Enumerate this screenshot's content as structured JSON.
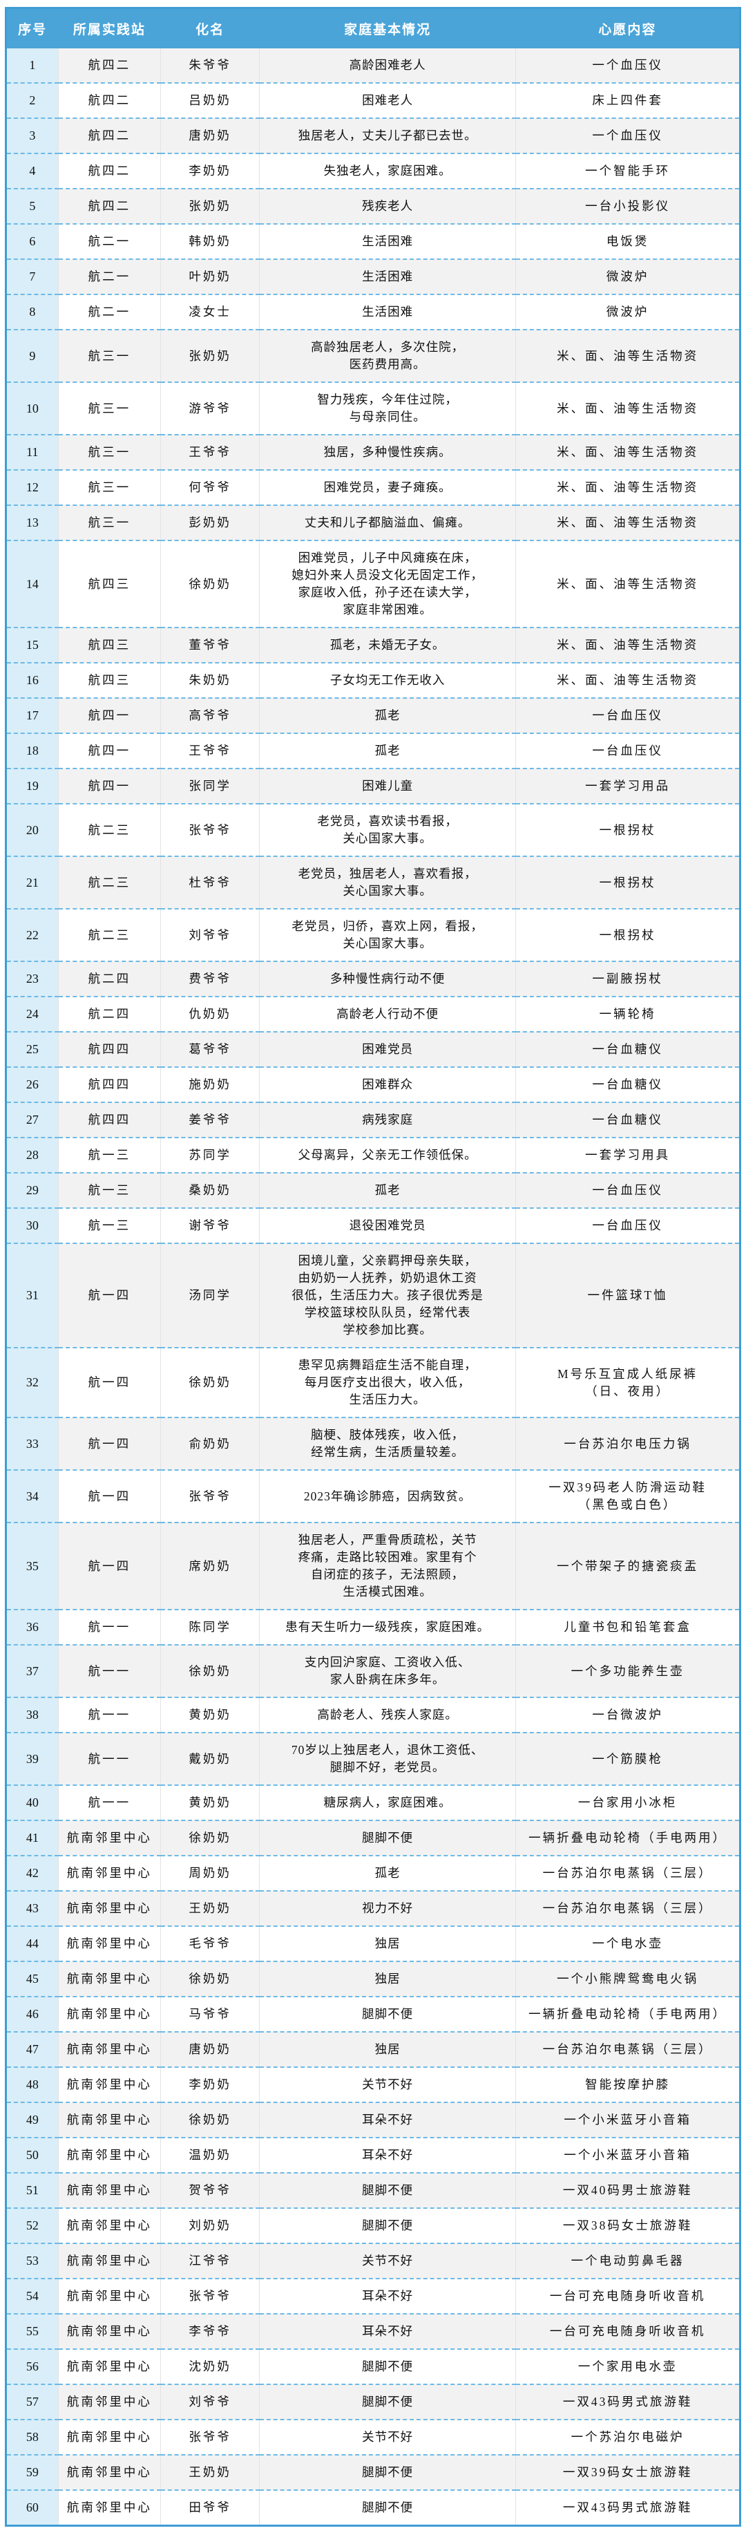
{
  "colors": {
    "header_bg": "#4aa4d8",
    "header_text": "#ffffff",
    "outer_border": "#3e9dd4",
    "index_column_bg": "#d9eef8",
    "alt_row_bg": "#f2f2f2",
    "row_divider_dashed": "#6db9e6",
    "body_text": "#111111"
  },
  "table": {
    "columns": [
      {
        "key": "index",
        "label": "序号"
      },
      {
        "key": "station",
        "label": "所属实践站"
      },
      {
        "key": "name",
        "label": "化名"
      },
      {
        "key": "situation",
        "label": "家庭基本情况"
      },
      {
        "key": "wish",
        "label": "心愿内容"
      }
    ],
    "rows": [
      {
        "index": "1",
        "station": "航四二",
        "name": "朱爷爷",
        "situation": "高龄困难老人",
        "wish": "一个血压仪"
      },
      {
        "index": "2",
        "station": "航四二",
        "name": "吕奶奶",
        "situation": "困难老人",
        "wish": "床上四件套"
      },
      {
        "index": "3",
        "station": "航四二",
        "name": "唐奶奶",
        "situation": "独居老人，丈夫儿子都已去世。",
        "wish": "一个血压仪"
      },
      {
        "index": "4",
        "station": "航四二",
        "name": "李奶奶",
        "situation": "失独老人，家庭困难。",
        "wish": "一个智能手环"
      },
      {
        "index": "5",
        "station": "航四二",
        "name": "张奶奶",
        "situation": "残疾老人",
        "wish": "一台小投影仪"
      },
      {
        "index": "6",
        "station": "航二一",
        "name": "韩奶奶",
        "situation": "生活困难",
        "wish": "电饭煲"
      },
      {
        "index": "7",
        "station": "航二一",
        "name": "叶奶奶",
        "situation": "生活困难",
        "wish": "微波炉"
      },
      {
        "index": "8",
        "station": "航二一",
        "name": "凌女士",
        "situation": "生活困难",
        "wish": "微波炉"
      },
      {
        "index": "9",
        "station": "航三一",
        "name": "张奶奶",
        "situation": "高龄独居老人，多次住院，\n医药费用高。",
        "wish": "米、面、油等生活物资"
      },
      {
        "index": "10",
        "station": "航三一",
        "name": "游爷爷",
        "situation": "智力残疾，今年住过院，\n与母亲同住。",
        "wish": "米、面、油等生活物资"
      },
      {
        "index": "11",
        "station": "航三一",
        "name": "王爷爷",
        "situation": "独居，多种慢性疾病。",
        "wish": "米、面、油等生活物资"
      },
      {
        "index": "12",
        "station": "航三一",
        "name": "何爷爷",
        "situation": "困难党员，妻子瘫痪。",
        "wish": "米、面、油等生活物资"
      },
      {
        "index": "13",
        "station": "航三一",
        "name": "彭奶奶",
        "situation": "丈夫和儿子都脑溢血、偏瘫。",
        "wish": "米、面、油等生活物资"
      },
      {
        "index": "14",
        "station": "航四三",
        "name": "徐奶奶",
        "situation": "困难党员，儿子中风瘫痪在床，\n媳妇外来人员没文化无固定工作，\n家庭收入低，孙子还在读大学，\n家庭非常困难。",
        "wish": "米、面、油等生活物资"
      },
      {
        "index": "15",
        "station": "航四三",
        "name": "董爷爷",
        "situation": "孤老，未婚无子女。",
        "wish": "米、面、油等生活物资"
      },
      {
        "index": "16",
        "station": "航四三",
        "name": "朱奶奶",
        "situation": "子女均无工作无收入",
        "wish": "米、面、油等生活物资"
      },
      {
        "index": "17",
        "station": "航四一",
        "name": "高爷爷",
        "situation": "孤老",
        "wish": "一台血压仪"
      },
      {
        "index": "18",
        "station": "航四一",
        "name": "王爷爷",
        "situation": "孤老",
        "wish": "一台血压仪"
      },
      {
        "index": "19",
        "station": "航四一",
        "name": "张同学",
        "situation": "困难儿童",
        "wish": "一套学习用品"
      },
      {
        "index": "20",
        "station": "航二三",
        "name": "张爷爷",
        "situation": "老党员，喜欢读书看报，\n关心国家大事。",
        "wish": "一根拐杖"
      },
      {
        "index": "21",
        "station": "航二三",
        "name": "杜爷爷",
        "situation": "老党员，独居老人，喜欢看报，\n关心国家大事。",
        "wish": "一根拐杖"
      },
      {
        "index": "22",
        "station": "航二三",
        "name": "刘爷爷",
        "situation": "老党员，归侨，喜欢上网，看报，\n关心国家大事。",
        "wish": "一根拐杖"
      },
      {
        "index": "23",
        "station": "航二四",
        "name": "费爷爷",
        "situation": "多种慢性病行动不便",
        "wish": "一副腋拐杖"
      },
      {
        "index": "24",
        "station": "航二四",
        "name": "仇奶奶",
        "situation": "高龄老人行动不便",
        "wish": "一辆轮椅"
      },
      {
        "index": "25",
        "station": "航四四",
        "name": "葛爷爷",
        "situation": "困难党员",
        "wish": "一台血糖仪"
      },
      {
        "index": "26",
        "station": "航四四",
        "name": "施奶奶",
        "situation": "困难群众",
        "wish": "一台血糖仪"
      },
      {
        "index": "27",
        "station": "航四四",
        "name": "姜爷爷",
        "situation": "病残家庭",
        "wish": "一台血糖仪"
      },
      {
        "index": "28",
        "station": "航一三",
        "name": "苏同学",
        "situation": "父母离异，父亲无工作领低保。",
        "wish": "一套学习用具"
      },
      {
        "index": "29",
        "station": "航一三",
        "name": "桑奶奶",
        "situation": "孤老",
        "wish": "一台血压仪"
      },
      {
        "index": "30",
        "station": "航一三",
        "name": "谢爷爷",
        "situation": "退役困难党员",
        "wish": "一台血压仪"
      },
      {
        "index": "31",
        "station": "航一四",
        "name": "汤同学",
        "situation": "困境儿童，父亲羁押母亲失联，\n由奶奶一人抚养，奶奶退休工资\n很低，生活压力大。孩子很优秀是\n学校篮球校队队员，经常代表\n学校参加比赛。",
        "wish": "一件篮球T恤"
      },
      {
        "index": "32",
        "station": "航一四",
        "name": "徐奶奶",
        "situation": "患罕见病舞蹈症生活不能自理，\n每月医疗支出很大，收入低，\n生活压力大。",
        "wish": "M号乐互宜成人纸尿裤\n（日、夜用）"
      },
      {
        "index": "33",
        "station": "航一四",
        "name": "俞奶奶",
        "situation": "脑梗、肢体残疾，收入低，\n经常生病，生活质量较差。",
        "wish": "一台苏泊尔电压力锅"
      },
      {
        "index": "34",
        "station": "航一四",
        "name": "张爷爷",
        "situation": "2023年确诊肺癌，因病致贫。",
        "wish": "一双39码老人防滑运动鞋\n（黑色或白色）"
      },
      {
        "index": "35",
        "station": "航一四",
        "name": "席奶奶",
        "situation": "独居老人，严重骨质疏松，关节\n疼痛，走路比较困难。家里有个\n自闭症的孩子，无法照顾，\n生活模式困难。",
        "wish": "一个带架子的搪瓷痰盂"
      },
      {
        "index": "36",
        "station": "航一一",
        "name": "陈同学",
        "situation": "患有天生听力一级残疾，家庭困难。",
        "wish": "儿童书包和铅笔套盒"
      },
      {
        "index": "37",
        "station": "航一一",
        "name": "徐奶奶",
        "situation": "支内回沪家庭、工资收入低、\n家人卧病在床多年。",
        "wish": "一个多功能养生壶"
      },
      {
        "index": "38",
        "station": "航一一",
        "name": "黄奶奶",
        "situation": "高龄老人、残疾人家庭。",
        "wish": "一台微波炉"
      },
      {
        "index": "39",
        "station": "航一一",
        "name": "戴奶奶",
        "situation": "70岁以上独居老人，退休工资低、\n腿脚不好，老党员。",
        "wish": "一个筋膜枪"
      },
      {
        "index": "40",
        "station": "航一一",
        "name": "黄奶奶",
        "situation": "糖尿病人，家庭困难。",
        "wish": "一台家用小冰柜"
      },
      {
        "index": "41",
        "station": "航南邻里中心",
        "name": "徐奶奶",
        "situation": "腿脚不便",
        "wish": "一辆折叠电动轮椅（手电两用）"
      },
      {
        "index": "42",
        "station": "航南邻里中心",
        "name": "周奶奶",
        "situation": "孤老",
        "wish": "一台苏泊尔电蒸锅（三层）"
      },
      {
        "index": "43",
        "station": "航南邻里中心",
        "name": "王奶奶",
        "situation": "视力不好",
        "wish": "一台苏泊尔电蒸锅（三层）"
      },
      {
        "index": "44",
        "station": "航南邻里中心",
        "name": "毛爷爷",
        "situation": "独居",
        "wish": "一个电水壶"
      },
      {
        "index": "45",
        "station": "航南邻里中心",
        "name": "徐奶奶",
        "situation": "独居",
        "wish": "一个小熊牌鸳鸯电火锅"
      },
      {
        "index": "46",
        "station": "航南邻里中心",
        "name": "马爷爷",
        "situation": "腿脚不便",
        "wish": "一辆折叠电动轮椅（手电两用）"
      },
      {
        "index": "47",
        "station": "航南邻里中心",
        "name": "唐奶奶",
        "situation": "独居",
        "wish": "一台苏泊尔电蒸锅（三层）"
      },
      {
        "index": "48",
        "station": "航南邻里中心",
        "name": "李奶奶",
        "situation": "关节不好",
        "wish": "智能按摩护膝"
      },
      {
        "index": "49",
        "station": "航南邻里中心",
        "name": "徐奶奶",
        "situation": "耳朵不好",
        "wish": "一个小米蓝牙小音箱"
      },
      {
        "index": "50",
        "station": "航南邻里中心",
        "name": "温奶奶",
        "situation": "耳朵不好",
        "wish": "一个小米蓝牙小音箱"
      },
      {
        "index": "51",
        "station": "航南邻里中心",
        "name": "贺爷爷",
        "situation": "腿脚不便",
        "wish": "一双40码男士旅游鞋"
      },
      {
        "index": "52",
        "station": "航南邻里中心",
        "name": "刘奶奶",
        "situation": "腿脚不便",
        "wish": "一双38码女士旅游鞋"
      },
      {
        "index": "53",
        "station": "航南邻里中心",
        "name": "江爷爷",
        "situation": "关节不好",
        "wish": "一个电动剪鼻毛器"
      },
      {
        "index": "54",
        "station": "航南邻里中心",
        "name": "张爷爷",
        "situation": "耳朵不好",
        "wish": "一台可充电随身听收音机"
      },
      {
        "index": "55",
        "station": "航南邻里中心",
        "name": "李爷爷",
        "situation": "耳朵不好",
        "wish": "一台可充电随身听收音机"
      },
      {
        "index": "56",
        "station": "航南邻里中心",
        "name": "沈奶奶",
        "situation": "腿脚不便",
        "wish": "一个家用电水壶"
      },
      {
        "index": "57",
        "station": "航南邻里中心",
        "name": "刘爷爷",
        "situation": "腿脚不便",
        "wish": "一双43码男式旅游鞋"
      },
      {
        "index": "58",
        "station": "航南邻里中心",
        "name": "张爷爷",
        "situation": "关节不好",
        "wish": "一个苏泊尔电磁炉"
      },
      {
        "index": "59",
        "station": "航南邻里中心",
        "name": "王奶奶",
        "situation": "腿脚不便",
        "wish": "一双39码女士旅游鞋"
      },
      {
        "index": "60",
        "station": "航南邻里中心",
        "name": "田爷爷",
        "situation": "腿脚不便",
        "wish": "一双43码男式旅游鞋"
      }
    ]
  }
}
